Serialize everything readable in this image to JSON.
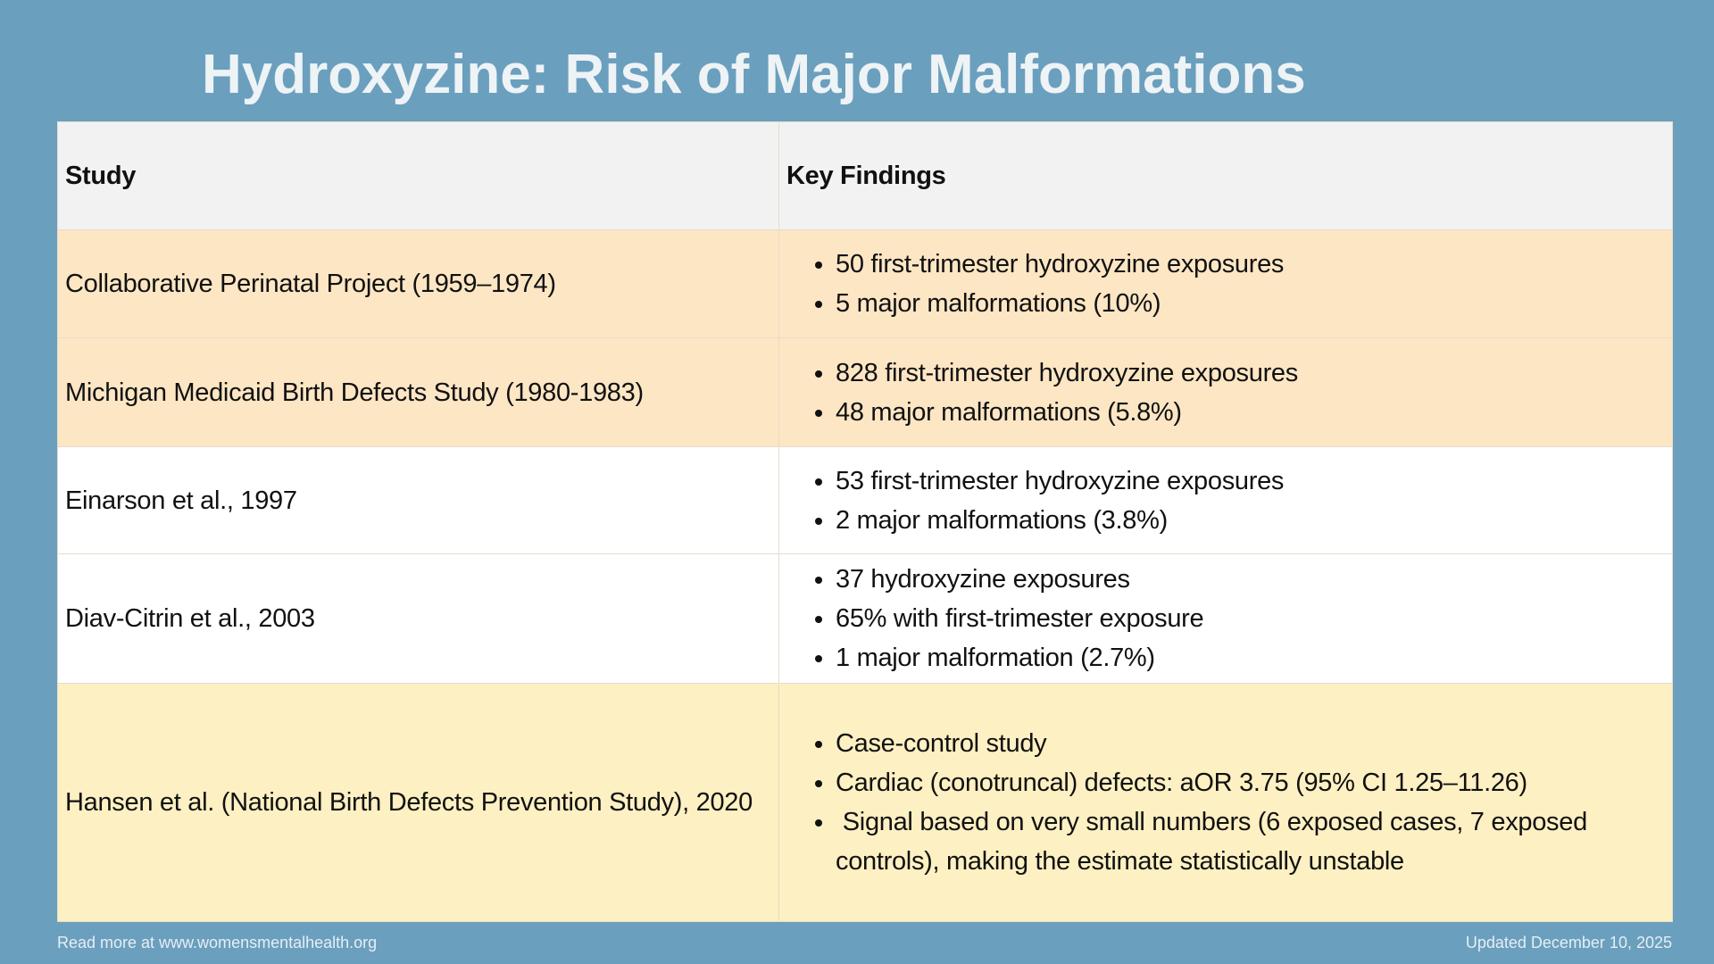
{
  "title": "Hydroxyzine: Risk of Major Malformations",
  "table": {
    "headers": [
      "Study",
      "Key Findings"
    ],
    "rows": [
      {
        "study": "Collaborative Perinatal Project (1959–1974)",
        "findings": [
          "50 first-trimester hydroxyzine exposures",
          "5 major malformations (10%)"
        ],
        "color": "#fde6c4"
      },
      {
        "study": "Michigan Medicaid Birth Defects Study (1980-1983)",
        "findings": [
          "828 first-trimester hydroxyzine exposures",
          "48 major malformations (5.8%)"
        ],
        "color": "#fde6c4"
      },
      {
        "study": "Einarson et al., 1997",
        "findings": [
          "53 first-trimester hydroxyzine exposures",
          "2 major malformations (3.8%)"
        ],
        "color": "#ffffff"
      },
      {
        "study": "Diav-Citrin et al., 2003",
        "findings": [
          "37  hydroxyzine exposures",
          "65% with first-trimester exposure",
          "1 major malformation (2.7%)"
        ],
        "color": "#ffffff"
      },
      {
        "study": "Hansen et al. (National Birth Defects Prevention Study), 2020",
        "findings": [
          "Case-control study",
          "Cardiac (conotruncal) defects: aOR 3.75 (95% CI 1.25–11.26)",
          " Signal based on very small numbers (6 exposed cases, 7 exposed controls), making the estimate statistically unstable"
        ],
        "color": "#fdf0c2"
      }
    ]
  },
  "footer": {
    "left": "Read more at www.womensmentalhealth.org",
    "right": "Updated December 10, 2025"
  },
  "colors": {
    "background": "#6b9fbe",
    "header_row": "#f2f2f2"
  }
}
